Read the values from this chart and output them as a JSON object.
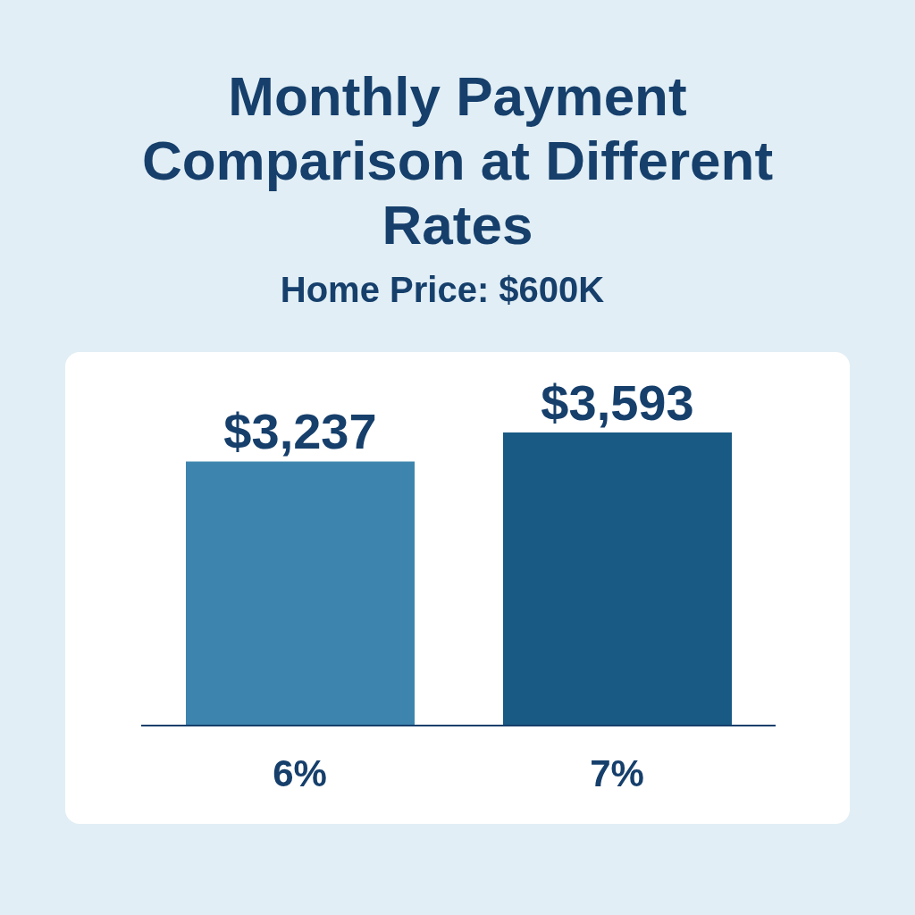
{
  "chart_data": {
    "type": "bar",
    "title": "Monthly Payment Comparison at Different Rates",
    "subtitle": "Home Price: $600K",
    "categories": [
      "6%",
      "7%"
    ],
    "values": [
      3237,
      3593
    ],
    "colors": [
      "#3d85ae",
      "#195a84"
    ],
    "data_labels": true,
    "value_labels": [
      "$3,237",
      "$3,593"
    ],
    "grid": false,
    "legend": false
  }
}
